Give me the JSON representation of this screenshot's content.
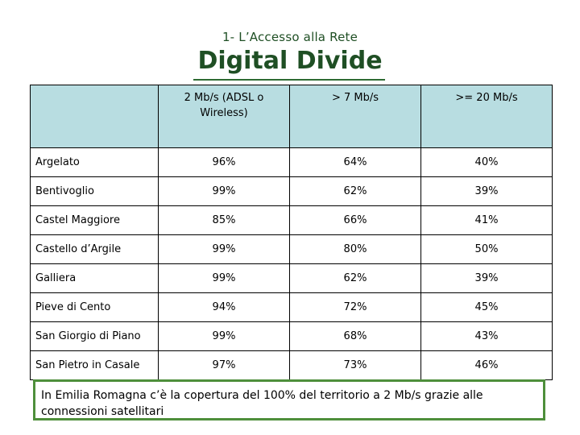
{
  "header": {
    "subtitle": "1- L’Accesso alla Rete",
    "title": "Digital Divide"
  },
  "table": {
    "corner": "",
    "columns": [
      "2 Mb/s (ADSL o Wireless)",
      "> 7 Mb/s",
      ">= 20 Mb/s"
    ],
    "rows": [
      {
        "name": "Argelato",
        "values": [
          "96%",
          "64%",
          "40%"
        ]
      },
      {
        "name": "Bentivoglio",
        "values": [
          "99%",
          "62%",
          "39%"
        ]
      },
      {
        "name": "Castel Maggiore",
        "values": [
          "85%",
          "66%",
          "41%"
        ]
      },
      {
        "name": "Castello d’Argile",
        "values": [
          "99%",
          "80%",
          "50%"
        ]
      },
      {
        "name": "Galliera",
        "values": [
          "99%",
          "62%",
          "39%"
        ]
      },
      {
        "name": "Pieve di Cento",
        "values": [
          "94%",
          "72%",
          "45%"
        ]
      },
      {
        "name": "San Giorgio di Piano",
        "values": [
          "99%",
          "68%",
          "43%"
        ]
      },
      {
        "name": "San Pietro in Casale",
        "values": [
          "97%",
          "73%",
          "46%"
        ]
      }
    ]
  },
  "note": {
    "text": "In Emilia Romagna c’è la copertura del 100% del territorio a 2 Mb/s grazie alle connessioni satellitari"
  },
  "colors": {
    "title": "#1f4f24",
    "header_fill": "#b8dde1",
    "note_border": "#4e8f3b"
  }
}
